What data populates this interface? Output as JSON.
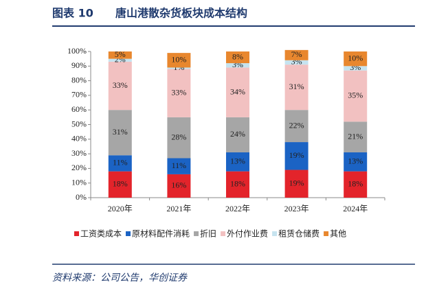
{
  "chart_data": {
    "type": "stacked_bar",
    "figure_label": "图表 10",
    "title": "唐山港散杂货板块成本结构",
    "source": "资料来源：公司公告，华创证券",
    "categories": [
      "2020年",
      "2021年",
      "2022年",
      "2023年",
      "2024年"
    ],
    "ylim": [
      0,
      100
    ],
    "yticks": [
      {
        "value": 0,
        "label": "0%"
      },
      {
        "value": 10,
        "label": "10%"
      },
      {
        "value": 20,
        "label": "20%"
      },
      {
        "value": 30,
        "label": "30%"
      },
      {
        "value": 40,
        "label": "40%"
      },
      {
        "value": 50,
        "label": "50%"
      },
      {
        "value": 60,
        "label": "60%"
      },
      {
        "value": 70,
        "label": "70%"
      },
      {
        "value": 80,
        "label": "80%"
      },
      {
        "value": 90,
        "label": "90%"
      },
      {
        "value": 100,
        "label": "100%"
      }
    ],
    "series": [
      {
        "name": "工资类成本",
        "color": "#e3242b",
        "values": [
          18,
          16,
          18,
          19,
          18
        ],
        "value_labels": [
          "18%",
          "16%",
          "18%",
          "19%",
          "18%"
        ]
      },
      {
        "name": "原材料配件消耗",
        "color": "#1b63c4",
        "values": [
          11,
          11,
          13,
          19,
          13
        ],
        "value_labels": [
          "11%",
          "11%",
          "13%",
          "19%",
          "13%"
        ]
      },
      {
        "name": "折旧",
        "color": "#a6a6a6",
        "values": [
          31,
          28,
          24,
          22,
          21
        ],
        "value_labels": [
          "31%",
          "28%",
          "24%",
          "22%",
          "21%"
        ]
      },
      {
        "name": "外付作业费",
        "color": "#f2c1c1",
        "values": [
          33,
          33,
          34,
          31,
          35
        ],
        "value_labels": [
          "33%",
          "33%",
          "34%",
          "31%",
          "35%"
        ]
      },
      {
        "name": "租赁仓储费",
        "color": "#c6e3ef",
        "values": [
          2,
          1,
          3,
          3,
          3
        ],
        "value_labels": [
          "2%",
          "1%",
          "3%",
          "3%",
          "3%"
        ]
      },
      {
        "name": "其他",
        "color": "#e8872e",
        "values": [
          5,
          10,
          8,
          7,
          10
        ],
        "value_labels": [
          "5%",
          "10%",
          "8%",
          "7%",
          "10%"
        ]
      }
    ]
  }
}
